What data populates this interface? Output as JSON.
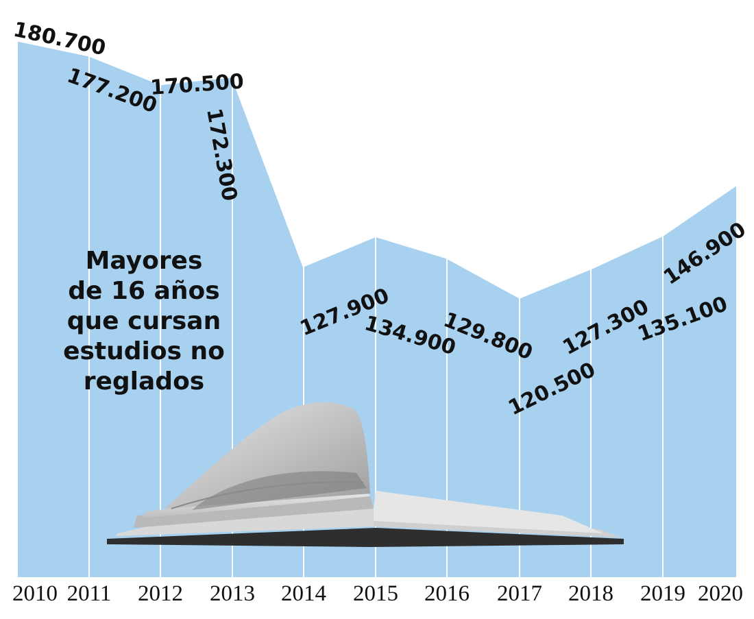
{
  "chart_data": {
    "type": "area",
    "x": [
      "2010",
      "2011",
      "2012",
      "2013",
      "2014",
      "2015",
      "2016",
      "2017",
      "2018",
      "2019",
      "2020"
    ],
    "values": [
      180700,
      177200,
      170500,
      172300,
      127900,
      134900,
      129800,
      120500,
      127300,
      135100,
      146900
    ],
    "value_labels": [
      "180.700",
      "177.200",
      "170.500",
      "172.300",
      "127.900",
      "134.900",
      "129.800",
      "120.500",
      "127.300",
      "135.100",
      "146.900"
    ],
    "annotation": [
      "Mayores",
      "de 16 años",
      "que cursan",
      "estudios no",
      "reglados"
    ],
    "title": "",
    "xlabel": "",
    "ylabel": "",
    "grid": true,
    "legend": "none",
    "colors": {
      "area": "#a8d1f0",
      "gridline": "#ffffff",
      "outline": "#ffffff",
      "text": "#111111"
    },
    "decoration": "open-book-icon"
  }
}
